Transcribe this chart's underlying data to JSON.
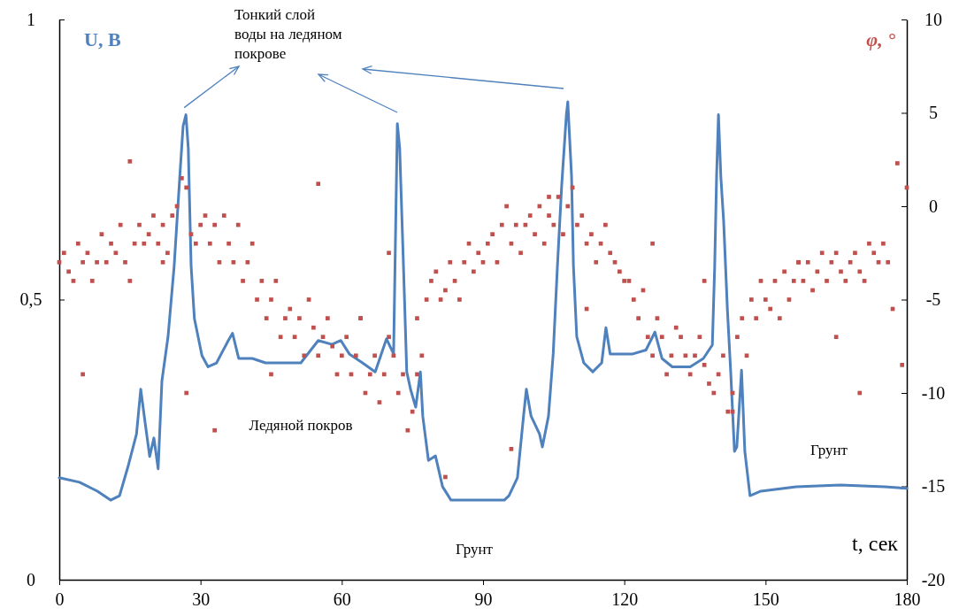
{
  "chart_data": {
    "type": "line",
    "xlabel": "t, сек",
    "ylabel": "U, В",
    "y2label": "φ, °",
    "xlim": [
      0,
      180
    ],
    "xticks": [
      0,
      30,
      60,
      90,
      120,
      150,
      180
    ],
    "ylim": [
      0,
      1
    ],
    "yticks": [
      0,
      {
        "value": 0.5,
        "label": "0,5"
      },
      1
    ],
    "y2lim": [
      -20,
      10
    ],
    "y2ticks": [
      -20,
      -15,
      -10,
      -5,
      0,
      5,
      10
    ],
    "grid": false,
    "annotations": [
      {
        "text": "Тонкий слой воды на ледяном покрове",
        "x": 26.9,
        "y": 0.83
      },
      "Ледяной покров",
      "Грунт",
      "Грунт"
    ],
    "series": [
      {
        "color": "#4f81bd",
        "marker": "none",
        "x": [
          0,
          4.3,
          8.1,
          10.9,
          12.8,
          14.7,
          16.4,
          17.3,
          18.3,
          19.2,
          20.1,
          21,
          21.8,
          23.1,
          24.4,
          25.6,
          26.3,
          26.9,
          27.4,
          28,
          28.7,
          30.3,
          31.6,
          33.4,
          35.9,
          36.8,
          38.1,
          41,
          43.8,
          47.5,
          51.3,
          55,
          57.9,
          59.8,
          61.6,
          64.4,
          67.1,
          69.5,
          71,
          71.8,
          72.3,
          73.1,
          73.8,
          74.6,
          75.7,
          76.7,
          77.2,
          78.4,
          79.9,
          81.4,
          83.2,
          88.9,
          94.5,
          95.5,
          97.3,
          98.6,
          99.2,
          100.2,
          102,
          102.6,
          103.9,
          104.9,
          105.8,
          106.7,
          107.7,
          108,
          108.8,
          109.2,
          109.9,
          111.4,
          113.3,
          115.2,
          116.1,
          117,
          118.9,
          121.8,
          124.6,
          126.5,
          128,
          130.2,
          134,
          136.8,
          138.7,
          139.2,
          139.6,
          140,
          140.5,
          141.1,
          141.9,
          142.6,
          143.4,
          143.9,
          144.9,
          145.6,
          146.7,
          149,
          156.5,
          165.9,
          175.3,
          180
        ],
        "values": [
          0.182,
          0.174,
          0.158,
          0.142,
          0.15,
          0.205,
          0.26,
          0.34,
          0.276,
          0.22,
          0.253,
          0.198,
          0.355,
          0.434,
          0.56,
          0.72,
          0.81,
          0.83,
          0.77,
          0.56,
          0.466,
          0.4,
          0.38,
          0.387,
          0.427,
          0.44,
          0.395,
          0.395,
          0.387,
          0.387,
          0.387,
          0.427,
          0.42,
          0.427,
          0.403,
          0.387,
          0.371,
          0.43,
          0.403,
          0.814,
          0.77,
          0.56,
          0.371,
          0.34,
          0.308,
          0.371,
          0.292,
          0.213,
          0.221,
          0.166,
          0.142,
          0.142,
          0.142,
          0.15,
          0.182,
          0.292,
          0.34,
          0.292,
          0.26,
          0.237,
          0.292,
          0.403,
          0.56,
          0.703,
          0.83,
          0.853,
          0.72,
          0.56,
          0.434,
          0.387,
          0.371,
          0.387,
          0.45,
          0.403,
          0.403,
          0.403,
          0.41,
          0.442,
          0.395,
          0.38,
          0.38,
          0.395,
          0.419,
          0.56,
          0.72,
          0.83,
          0.72,
          0.64,
          0.482,
          0.371,
          0.229,
          0.237,
          0.374,
          0.229,
          0.15,
          0.158,
          0.166,
          0.169,
          0.166,
          0.163
        ]
      },
      {
        "type": "scatter",
        "axis": "y2",
        "color": "#c0504d",
        "marker": "square",
        "x": [
          0,
          1,
          2,
          3,
          4,
          5,
          6,
          7,
          8,
          9,
          10,
          11,
          12,
          13,
          14,
          15,
          16,
          17,
          18,
          19,
          20,
          21,
          22,
          23,
          24,
          25,
          26,
          27,
          28,
          29,
          30,
          31,
          32,
          33,
          34,
          35,
          36,
          37,
          38,
          39,
          40,
          41,
          42,
          43,
          44,
          45,
          46,
          47,
          48,
          49,
          50,
          51,
          52,
          53,
          54,
          55,
          56,
          57,
          58,
          59,
          60,
          61,
          62,
          63,
          64,
          65,
          66,
          67,
          68,
          69,
          70,
          71,
          72,
          73,
          74,
          75,
          76,
          77,
          78,
          79,
          80,
          81,
          82,
          83,
          84,
          85,
          86,
          87,
          88,
          89,
          90,
          91,
          92,
          93,
          94,
          95,
          96,
          97,
          98,
          99,
          100,
          101,
          102,
          103,
          104,
          105,
          106,
          107,
          108,
          109,
          110,
          111,
          112,
          113,
          114,
          115,
          116,
          117,
          118,
          119,
          120,
          121,
          122,
          123,
          124,
          125,
          126,
          127,
          128,
          129,
          130,
          131,
          132,
          133,
          134,
          135,
          136,
          137,
          138,
          139,
          140,
          141,
          142,
          143,
          144,
          145,
          146,
          147,
          148,
          149,
          150,
          151,
          152,
          153,
          154,
          155,
          156,
          157,
          158,
          159,
          160,
          161,
          162,
          163,
          164,
          165,
          166,
          167,
          168,
          169,
          170,
          171,
          172,
          173,
          174,
          175,
          176,
          177,
          178,
          179,
          180,
          5,
          15,
          22,
          27,
          33,
          45,
          55,
          64,
          70,
          76,
          82,
          96,
          104,
          112,
          126,
          137,
          143,
          157,
          165,
          170
        ],
        "values": [
          -3,
          -2.5,
          -3.5,
          -4,
          -2,
          -3,
          -2.5,
          -4,
          -3,
          -1.5,
          -3,
          -2,
          -2.5,
          -1,
          -3,
          2.4,
          -2,
          -1,
          -2,
          -1.5,
          -0.5,
          -2,
          -1,
          -2.5,
          -0.5,
          0,
          1.5,
          1,
          -1.5,
          -2,
          -1,
          -0.5,
          -2,
          -1,
          -3,
          -0.5,
          -2,
          -3,
          -1,
          -4,
          -3,
          -2,
          -5,
          -4,
          -6,
          -5,
          -4,
          -7,
          -6,
          -5.5,
          -7,
          -6,
          -8,
          -5,
          -6.5,
          -8,
          -7,
          -6,
          -7.5,
          -9,
          -8,
          -7,
          -9,
          -8,
          -6,
          -10,
          -9,
          -8,
          -10.5,
          -9,
          -7,
          -8,
          -10,
          -9,
          -12,
          -11,
          -6,
          -8,
          -5,
          -4,
          -3.5,
          -5,
          -4.5,
          -3,
          -4,
          -5,
          -3,
          -2,
          -3.5,
          -2.5,
          -3,
          -2,
          -1.5,
          -3,
          -1,
          0,
          -2,
          -1,
          -2.5,
          -1,
          -0.5,
          -1.5,
          0,
          -2,
          -0.5,
          -1,
          0.5,
          -1.5,
          0,
          1,
          -1,
          -0.5,
          -2,
          -1.5,
          -3,
          -2,
          -1,
          -2.5,
          -3,
          -3.5,
          -4,
          -4,
          -5,
          -6,
          -4.5,
          -7,
          -8,
          -6,
          -7,
          -9,
          -8,
          -6.5,
          -7,
          -8,
          -9,
          -8,
          -7,
          -8.5,
          -9.5,
          -10,
          -9,
          -8,
          -11,
          -10,
          -7,
          -6,
          -8,
          -5,
          -6,
          -4,
          -5,
          -5.5,
          -4,
          -6,
          -3.5,
          -5,
          -4,
          -3,
          -4,
          -3,
          -4.5,
          -3.5,
          -2.5,
          -4,
          -3,
          -2.5,
          -3.5,
          -4,
          -3,
          -2.5,
          -3.5,
          -4,
          -2,
          -2.5,
          -3,
          -2,
          -3,
          -5.5,
          2.3,
          -8.5,
          1,
          -9,
          -4,
          -3,
          -10,
          -12,
          -9,
          1.2,
          -6,
          -2.5,
          -9,
          -14.5,
          -13,
          0.5,
          -5.5,
          -2,
          -4,
          -11,
          -3,
          -7,
          -10
        ]
      }
    ]
  }
}
